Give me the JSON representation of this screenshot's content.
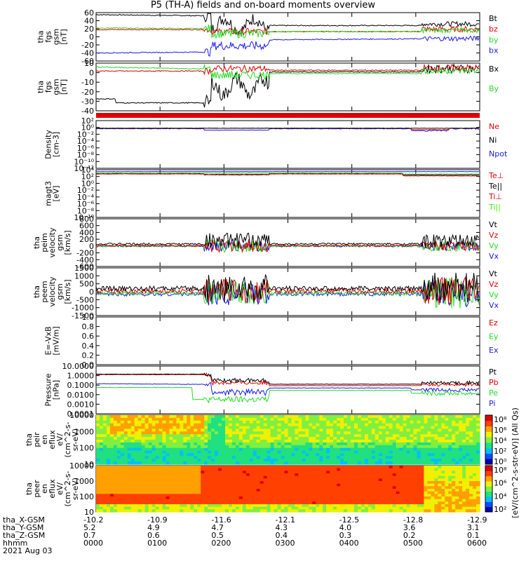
{
  "title": "P5 (TH-A) fields and on-board moments overview",
  "colors": {
    "black": "#000000",
    "red": "#e00000",
    "green": "#22dd22",
    "blue": "#1a1aee",
    "lime": "#44ee00"
  },
  "panels": [
    {
      "id": "fgs_gsm",
      "ylabel": [
        "tha",
        "fgs",
        "gsm",
        "[nT]"
      ],
      "yticks": [
        "60",
        "40",
        "20",
        "0",
        "-20",
        "-40",
        "-60"
      ],
      "legend": [
        {
          "text": "Bt",
          "color": "black"
        },
        {
          "text": "bz",
          "color": "red"
        },
        {
          "text": "by",
          "color": "green"
        },
        {
          "text": "bx",
          "color": "blue"
        }
      ]
    },
    {
      "id": "fgs_sm",
      "ylabel": [
        "tha",
        "fgs",
        "gsm",
        "[nT]"
      ],
      "yticks": [
        "10",
        "0",
        "-10",
        "-20",
        "-30",
        "-40"
      ],
      "legend": [
        {
          "text": "Bx",
          "color": "black"
        },
        {
          "text": "By",
          "color": "green"
        }
      ]
    },
    {
      "id": "density",
      "ylabel": [
        "Density",
        "[cm-3]"
      ],
      "yticks": [
        "10²",
        "10⁰",
        "10⁻²",
        "10⁻⁴",
        "10⁻⁶",
        "10⁻⁸",
        "10⁻¹⁰",
        "10⁻¹²"
      ],
      "legend": [
        {
          "text": "Ne",
          "color": "red"
        },
        {
          "text": "Ni",
          "color": "black"
        },
        {
          "text": "Npot",
          "color": "blue"
        }
      ]
    },
    {
      "id": "temp",
      "ylabel": [
        "magt3",
        "[eV]"
      ],
      "yticks": [
        "10⁴",
        "10²",
        "10⁰",
        "10⁻²",
        "10⁻⁴",
        "10⁻⁶",
        "10⁻⁸",
        "10⁻¹⁰"
      ],
      "legend": [
        {
          "text": "Te⊥",
          "color": "red"
        },
        {
          "text": "Te||",
          "color": "black"
        },
        {
          "text": "Ti⊥",
          "color": "red"
        },
        {
          "text": "Ti||",
          "color": "lime"
        }
      ]
    },
    {
      "id": "peim_vel",
      "ylabel": [
        "tha",
        "peim",
        "velocity",
        "gsm",
        "[km/s]"
      ],
      "yticks": [
        "800",
        "600",
        "400",
        "200",
        "0",
        "-200",
        "-400",
        "-600"
      ],
      "legend": [
        {
          "text": "Vt",
          "color": "black"
        },
        {
          "text": "Vz",
          "color": "red"
        },
        {
          "text": "Vy",
          "color": "green"
        },
        {
          "text": "Vx",
          "color": "blue"
        }
      ]
    },
    {
      "id": "peem_vel",
      "ylabel": [
        "tha",
        "peem",
        "velocity",
        "gsm",
        "[km/s]"
      ],
      "yticks": [
        "1500",
        "1000",
        "500",
        "0",
        "-500",
        "-1000",
        "-1500"
      ],
      "legend": [
        {
          "text": "Vt",
          "color": "black"
        },
        {
          "text": "Vz",
          "color": "red"
        },
        {
          "text": "Vy",
          "color": "green"
        },
        {
          "text": "Vx",
          "color": "blue"
        }
      ]
    },
    {
      "id": "efield",
      "ylabel": [
        "E=-VxB",
        "[mV/m]"
      ],
      "yticks": [
        "1.0",
        "0.8",
        "0.6",
        "0.4",
        "0.2",
        "0.0"
      ],
      "legend": [
        {
          "text": "Ez",
          "color": "red"
        },
        {
          "text": "Ey",
          "color": "green"
        },
        {
          "text": "Ex",
          "color": "blue"
        }
      ]
    },
    {
      "id": "pressure",
      "ylabel": [
        "Pressure",
        "[nPa]"
      ],
      "yticks": [
        "10.0000",
        "1.0000",
        "0.1000",
        "0.0100",
        "0.0010",
        "0.0001"
      ],
      "legend": [
        {
          "text": "Pt",
          "color": "black"
        },
        {
          "text": "Pb",
          "color": "red"
        },
        {
          "text": "Pe",
          "color": "green"
        },
        {
          "text": "Pi",
          "color": "blue"
        }
      ]
    },
    {
      "id": "peir_eflux",
      "ylabel": [
        "tha",
        "peir",
        "en",
        "eflux",
        "eV/",
        "(cm^2-s-",
        "sr-eV)"
      ],
      "yticks": [
        "10000",
        "1000",
        "100",
        "10"
      ]
    },
    {
      "id": "peer_eflux",
      "ylabel": [
        "tha",
        "peer",
        "en",
        "eflux",
        "eV/",
        "(cm^2-s-",
        "sr-eV)"
      ],
      "yticks": [
        "10000",
        "1000",
        "100",
        "10"
      ]
    }
  ],
  "colorbar": {
    "label": "[eV/(cm^2-s-str-eV)] (All Qs)",
    "ticks1": [
      "10⁸",
      "10⁶",
      "10⁴",
      "10²",
      "10⁰"
    ],
    "ticks2": [
      "10⁸",
      "10⁶",
      "10⁴",
      "10²"
    ]
  },
  "ephemeris": {
    "rows": [
      {
        "label": "tha_X-GSM",
        "values": [
          "-10.2",
          "-10.9",
          "-11.6",
          "-12.1",
          "-12.5",
          "-12.8",
          "-12.9"
        ]
      },
      {
        "label": "tha_Y-GSM",
        "values": [
          "5.2",
          "4.9",
          "4.7",
          "4.3",
          "4.0",
          "3.6",
          "3.1"
        ]
      },
      {
        "label": "tha_Z-GSM",
        "values": [
          "0.7",
          "0.6",
          "0.5",
          "0.4",
          "0.3",
          "0.2",
          "0.1"
        ]
      },
      {
        "label": "hhmm",
        "values": [
          "0000",
          "0100",
          "0200",
          "0300",
          "0400",
          "0500",
          "0600"
        ]
      }
    ],
    "date": "2021 Aug 03"
  },
  "chart_data": {
    "type": "line",
    "title": "P5 (TH-A) fields and on-board moments overview",
    "x": [
      "0000",
      "0100",
      "0200",
      "0300",
      "0400",
      "0500",
      "0600"
    ],
    "series": [
      {
        "name": "Bt",
        "values": [
          55,
          53,
          30,
          28,
          30,
          33,
          30
        ]
      },
      {
        "name": "bz",
        "values": [
          18,
          15,
          12,
          13,
          15,
          18,
          20
        ]
      },
      {
        "name": "by",
        "values": [
          22,
          20,
          5,
          12,
          14,
          17,
          15
        ]
      },
      {
        "name": "bx",
        "values": [
          -40,
          -38,
          -20,
          -10,
          -5,
          -2,
          -5
        ]
      },
      {
        "name": "Ne",
        "values": [
          1,
          1,
          0.8,
          1,
          1,
          0.6,
          0.5
        ]
      },
      {
        "name": "Pt",
        "values": [
          1.0,
          0.9,
          0.4,
          0.3,
          0.3,
          0.4,
          0.2
        ]
      },
      {
        "name": "Pb",
        "values": [
          1.0,
          0.9,
          0.3,
          0.3,
          0.3,
          0.35,
          0.2
        ]
      },
      {
        "name": "Pi",
        "values": [
          0.4,
          0.3,
          0.1,
          0.2,
          0.2,
          0.1,
          0.05
        ]
      },
      {
        "name": "Pe",
        "values": [
          0.05,
          0.04,
          0.02,
          0.05,
          0.05,
          0.03,
          0.02
        ]
      }
    ],
    "xlabel": "hhmm",
    "date": "2021 Aug 03"
  }
}
